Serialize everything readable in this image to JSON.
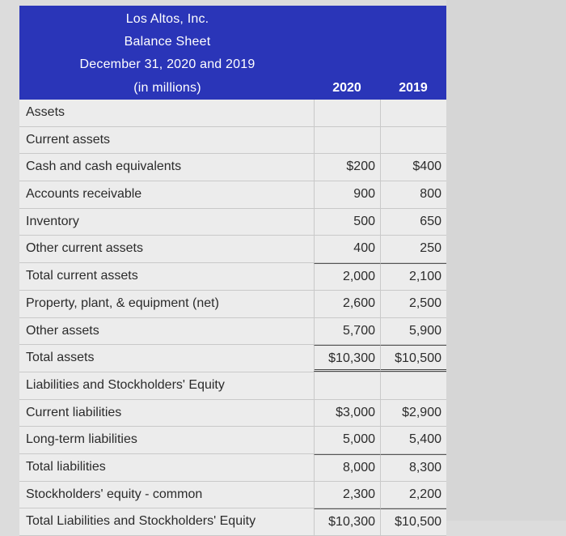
{
  "header": {
    "company": "Los Altos, Inc.",
    "statement": "Balance Sheet",
    "dates": "December 31, 2020 and 2019",
    "units": "(in millions)",
    "year1": "2020",
    "year2": "2019"
  },
  "rows": [
    {
      "label": "Assets",
      "v2020": "",
      "v2019": ""
    },
    {
      "label": "Current assets",
      "v2020": "",
      "v2019": ""
    },
    {
      "label": "Cash and cash equivalents",
      "v2020": "$200",
      "v2019": "$400"
    },
    {
      "label": "Accounts receivable",
      "v2020": "900",
      "v2019": "800"
    },
    {
      "label": "Inventory",
      "v2020": "500",
      "v2019": "650"
    },
    {
      "label": "Other current assets",
      "v2020": "400",
      "v2019": "250"
    },
    {
      "label": "Total current assets",
      "v2020": "2,000",
      "v2019": "2,100"
    },
    {
      "label": "Property, plant, & equipment (net)",
      "v2020": "2,600",
      "v2019": "2,500"
    },
    {
      "label": "Other assets",
      "v2020": "5,700",
      "v2019": "5,900"
    },
    {
      "label": "Total assets",
      "v2020": "$10,300",
      "v2019": "$10,500"
    },
    {
      "label": "Liabilities and Stockholders' Equity",
      "v2020": "",
      "v2019": ""
    },
    {
      "label": "Current liabilities",
      "v2020": "$3,000",
      "v2019": "$2,900"
    },
    {
      "label": "Long-term liabilities",
      "v2020": "5,000",
      "v2019": "5,400"
    },
    {
      "label": "Total liabilities",
      "v2020": "8,000",
      "v2019": "8,300"
    },
    {
      "label": "Stockholders' equity - common",
      "v2020": "2,300",
      "v2019": "2,200"
    },
    {
      "label": "Total Liabilities and Stockholders' Equity",
      "v2020": "$10,300",
      "v2019": "$10,500"
    }
  ]
}
